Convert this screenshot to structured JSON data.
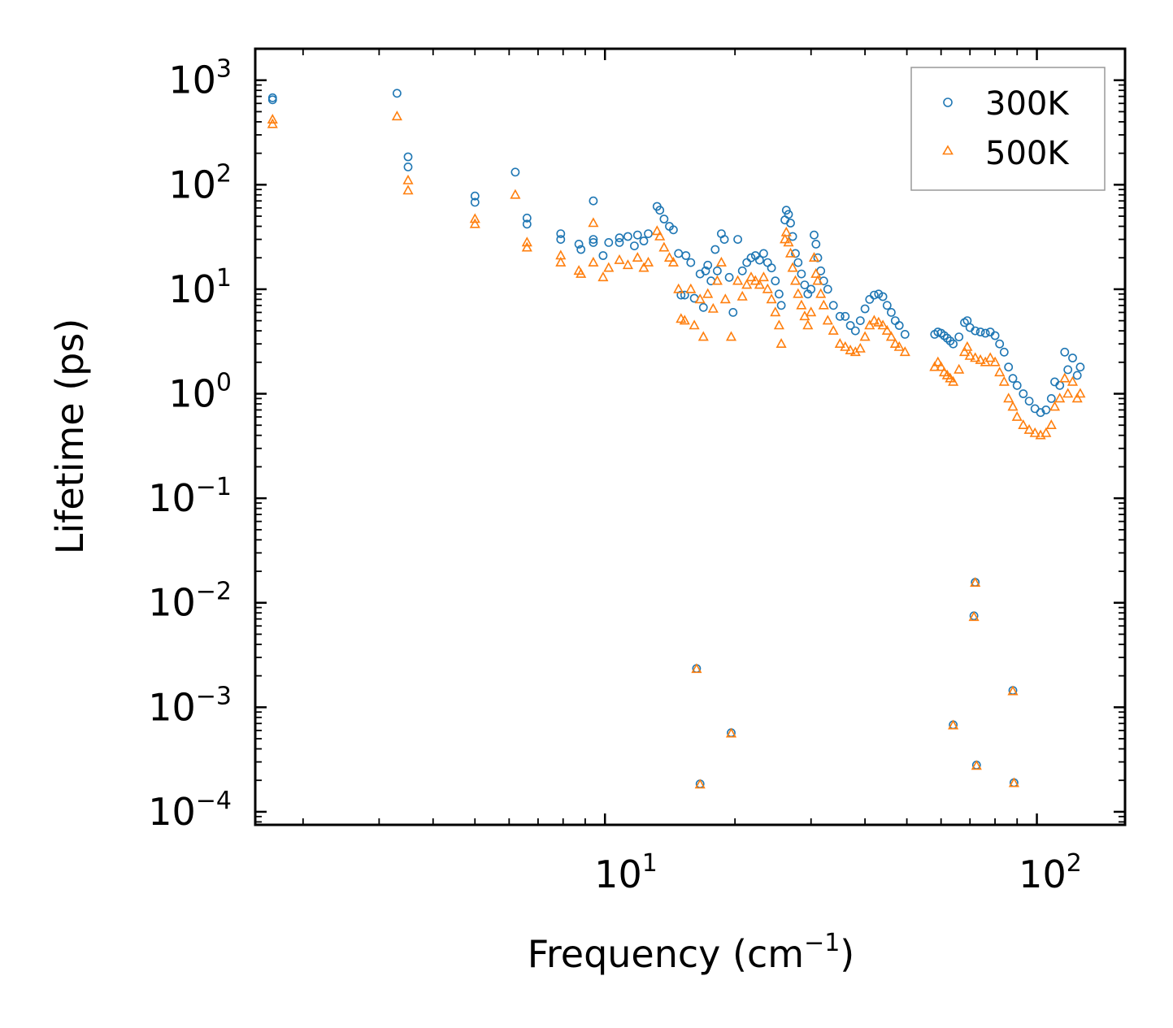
{
  "chart_data": {
    "type": "scatter",
    "xscale": "log",
    "yscale": "log",
    "xlim": [
      1.55,
      160
    ],
    "ylim": [
      7.5e-05,
      2000
    ],
    "xlabel": "Frequency (cm",
    "xlabel_exp": "−1",
    "xlabel_end": ")",
    "ylabel": "Lifetime (ps)",
    "x_ticks": [
      {
        "base": "10",
        "exp": "1",
        "value": 10
      },
      {
        "base": "10",
        "exp": "2",
        "value": 100
      }
    ],
    "y_ticks": [
      {
        "base": "10",
        "exp": "3",
        "value": 1000
      },
      {
        "base": "10",
        "exp": "2",
        "value": 100
      },
      {
        "base": "10",
        "exp": "1",
        "value": 10
      },
      {
        "base": "10",
        "exp": "0",
        "value": 1
      },
      {
        "base": "10",
        "exp": "−1",
        "value": 0.1
      },
      {
        "base": "10",
        "exp": "−2",
        "value": 0.01
      },
      {
        "base": "10",
        "exp": "−3",
        "value": 0.001
      },
      {
        "base": "10",
        "exp": "−4",
        "value": 0.0001
      }
    ],
    "legend_position": "top-right",
    "series": [
      {
        "name": "300K",
        "marker": "circle",
        "color": "#1f77b4",
        "points": [
          [
            1.7,
            680
          ],
          [
            1.7,
            650
          ],
          [
            3.3,
            750
          ],
          [
            3.5,
            185
          ],
          [
            3.5,
            148
          ],
          [
            5.0,
            78
          ],
          [
            5.0,
            68
          ],
          [
            6.2,
            132
          ],
          [
            6.6,
            48
          ],
          [
            6.6,
            42
          ],
          [
            7.9,
            34
          ],
          [
            7.9,
            30
          ],
          [
            8.7,
            27
          ],
          [
            8.8,
            24
          ],
          [
            9.4,
            70
          ],
          [
            9.4,
            30
          ],
          [
            9.4,
            28
          ],
          [
            9.9,
            21
          ],
          [
            10.2,
            28
          ],
          [
            10.8,
            31
          ],
          [
            10.8,
            28
          ],
          [
            11.3,
            32
          ],
          [
            11.7,
            26
          ],
          [
            11.9,
            33
          ],
          [
            12.3,
            29
          ],
          [
            12.6,
            34
          ],
          [
            13.2,
            62
          ],
          [
            13.4,
            57
          ],
          [
            13.7,
            47
          ],
          [
            14.1,
            40
          ],
          [
            14.4,
            37
          ],
          [
            14.8,
            22
          ],
          [
            15.0,
            8.8
          ],
          [
            15.3,
            8.8
          ],
          [
            15.4,
            21
          ],
          [
            15.8,
            18
          ],
          [
            16.1,
            8.2
          ],
          [
            16.6,
            14
          ],
          [
            16.9,
            6.7
          ],
          [
            17.1,
            15
          ],
          [
            17.3,
            17
          ],
          [
            17.6,
            12
          ],
          [
            18.0,
            24
          ],
          [
            18.2,
            15
          ],
          [
            18.6,
            34
          ],
          [
            18.9,
            30
          ],
          [
            19.4,
            13
          ],
          [
            19.8,
            6.0
          ],
          [
            20.3,
            30
          ],
          [
            20.8,
            15
          ],
          [
            21.3,
            18
          ],
          [
            21.8,
            20
          ],
          [
            22.3,
            21
          ],
          [
            22.8,
            19
          ],
          [
            23.3,
            22
          ],
          [
            23.8,
            18
          ],
          [
            24.3,
            16
          ],
          [
            24.8,
            12
          ],
          [
            25.3,
            9.0
          ],
          [
            25.6,
            7.0
          ],
          [
            26.1,
            46
          ],
          [
            26.3,
            57
          ],
          [
            26.6,
            52
          ],
          [
            26.9,
            43
          ],
          [
            27.2,
            32
          ],
          [
            27.6,
            22
          ],
          [
            28.0,
            18
          ],
          [
            28.5,
            14
          ],
          [
            29.0,
            11
          ],
          [
            29.5,
            9.0
          ],
          [
            30.0,
            10
          ],
          [
            30.5,
            33
          ],
          [
            30.8,
            27
          ],
          [
            31.1,
            20
          ],
          [
            31.6,
            15
          ],
          [
            32.1,
            12
          ],
          [
            32.8,
            10
          ],
          [
            33.8,
            7.0
          ],
          [
            35.0,
            5.5
          ],
          [
            36.0,
            5.5
          ],
          [
            37.0,
            4.5
          ],
          [
            38.0,
            4.0
          ],
          [
            39.0,
            5.0
          ],
          [
            40.0,
            6.5
          ],
          [
            41.0,
            8.0
          ],
          [
            42.0,
            8.8
          ],
          [
            43.0,
            9.0
          ],
          [
            44.0,
            8.5
          ],
          [
            45.0,
            7.0
          ],
          [
            46.0,
            6.0
          ],
          [
            47.0,
            5.0
          ],
          [
            48.0,
            4.5
          ],
          [
            49.5,
            3.7
          ],
          [
            58.0,
            3.7
          ],
          [
            59.0,
            3.9
          ],
          [
            60.0,
            3.8
          ],
          [
            61.0,
            3.6
          ],
          [
            62.0,
            3.4
          ],
          [
            63.0,
            3.2
          ],
          [
            64.0,
            3.0
          ],
          [
            66.0,
            3.5
          ],
          [
            68.0,
            4.8
          ],
          [
            69.0,
            5.0
          ],
          [
            70.0,
            4.3
          ],
          [
            72.0,
            4.0
          ],
          [
            74.0,
            3.9
          ],
          [
            76.0,
            3.8
          ],
          [
            78.0,
            3.9
          ],
          [
            80.0,
            3.6
          ],
          [
            82.0,
            3.0
          ],
          [
            84.0,
            2.5
          ],
          [
            86.0,
            1.8
          ],
          [
            88.0,
            1.4
          ],
          [
            90.0,
            1.2
          ],
          [
            93.0,
            1.0
          ],
          [
            96.0,
            0.85
          ],
          [
            99.0,
            0.72
          ],
          [
            102.0,
            0.66
          ],
          [
            105.0,
            0.7
          ],
          [
            108.0,
            0.9
          ],
          [
            110.0,
            1.3
          ],
          [
            113.0,
            1.2
          ],
          [
            116.0,
            2.5
          ],
          [
            118.0,
            1.7
          ],
          [
            121.0,
            2.2
          ],
          [
            124.0,
            1.5
          ],
          [
            126.0,
            1.8
          ],
          [
            16.3,
            0.00235
          ],
          [
            19.6,
            0.00057
          ],
          [
            16.6,
            0.000185
          ],
          [
            72.0,
            0.0157
          ],
          [
            71.5,
            0.0075
          ],
          [
            64.0,
            0.00068
          ],
          [
            72.5,
            0.00028
          ],
          [
            88.0,
            0.00145
          ],
          [
            88.5,
            0.00019
          ]
        ]
      },
      {
        "name": "500K",
        "marker": "triangle",
        "color": "#ff7f0e",
        "points": [
          [
            1.7,
            420
          ],
          [
            1.7,
            380
          ],
          [
            3.3,
            450
          ],
          [
            3.5,
            110
          ],
          [
            3.5,
            88
          ],
          [
            5.0,
            47
          ],
          [
            5.0,
            42
          ],
          [
            6.2,
            80
          ],
          [
            6.6,
            28
          ],
          [
            6.6,
            25
          ],
          [
            7.9,
            21
          ],
          [
            7.9,
            18
          ],
          [
            8.7,
            15
          ],
          [
            8.8,
            14
          ],
          [
            9.4,
            43
          ],
          [
            9.4,
            18
          ],
          [
            9.9,
            13
          ],
          [
            10.2,
            16
          ],
          [
            10.8,
            19
          ],
          [
            11.3,
            17
          ],
          [
            11.9,
            20
          ],
          [
            12.3,
            16
          ],
          [
            12.6,
            18
          ],
          [
            13.2,
            36
          ],
          [
            13.4,
            32
          ],
          [
            13.7,
            25
          ],
          [
            14.1,
            20
          ],
          [
            14.4,
            18
          ],
          [
            14.8,
            10
          ],
          [
            15.0,
            5.2
          ],
          [
            15.3,
            5.0
          ],
          [
            15.8,
            10
          ],
          [
            16.1,
            4.5
          ],
          [
            16.6,
            8.0
          ],
          [
            16.9,
            3.5
          ],
          [
            17.3,
            9.0
          ],
          [
            17.8,
            6.5
          ],
          [
            18.2,
            12
          ],
          [
            18.6,
            18
          ],
          [
            19.0,
            8.0
          ],
          [
            19.6,
            3.5
          ],
          [
            20.3,
            12
          ],
          [
            20.8,
            8.5
          ],
          [
            21.3,
            11
          ],
          [
            21.8,
            13
          ],
          [
            22.3,
            12
          ],
          [
            22.8,
            11
          ],
          [
            23.3,
            13
          ],
          [
            23.8,
            10
          ],
          [
            24.3,
            8.0
          ],
          [
            24.8,
            6.0
          ],
          [
            25.3,
            4.5
          ],
          [
            25.6,
            3.0
          ],
          [
            26.1,
            30
          ],
          [
            26.3,
            35
          ],
          [
            26.6,
            28
          ],
          [
            26.9,
            22
          ],
          [
            27.2,
            16
          ],
          [
            27.6,
            12
          ],
          [
            28.0,
            9.0
          ],
          [
            28.5,
            7.0
          ],
          [
            29.0,
            5.5
          ],
          [
            29.5,
            4.5
          ],
          [
            30.0,
            6.0
          ],
          [
            30.5,
            20
          ],
          [
            30.8,
            14
          ],
          [
            31.1,
            12
          ],
          [
            31.6,
            9.0
          ],
          [
            32.1,
            7.0
          ],
          [
            32.8,
            5.0
          ],
          [
            33.8,
            4.0
          ],
          [
            35.0,
            3.0
          ],
          [
            36.0,
            2.8
          ],
          [
            37.0,
            2.6
          ],
          [
            38.0,
            2.5
          ],
          [
            39.0,
            2.7
          ],
          [
            40.0,
            3.5
          ],
          [
            41.0,
            4.5
          ],
          [
            42.0,
            5.0
          ],
          [
            43.0,
            4.8
          ],
          [
            44.0,
            4.5
          ],
          [
            45.0,
            4.0
          ],
          [
            46.0,
            3.5
          ],
          [
            47.0,
            3.0
          ],
          [
            48.0,
            2.8
          ],
          [
            49.5,
            2.5
          ],
          [
            58.0,
            1.8
          ],
          [
            59.0,
            2.0
          ],
          [
            60.0,
            1.8
          ],
          [
            61.0,
            1.6
          ],
          [
            62.0,
            1.5
          ],
          [
            63.0,
            1.4
          ],
          [
            64.0,
            1.3
          ],
          [
            66.0,
            1.7
          ],
          [
            68.0,
            2.5
          ],
          [
            69.0,
            2.8
          ],
          [
            70.0,
            2.3
          ],
          [
            72.0,
            2.2
          ],
          [
            74.0,
            2.1
          ],
          [
            76.0,
            2.0
          ],
          [
            78.0,
            2.2
          ],
          [
            80.0,
            2.0
          ],
          [
            82.0,
            1.6
          ],
          [
            84.0,
            1.3
          ],
          [
            86.0,
            0.9
          ],
          [
            88.0,
            0.75
          ],
          [
            90.0,
            0.6
          ],
          [
            93.0,
            0.5
          ],
          [
            96.0,
            0.45
          ],
          [
            99.0,
            0.42
          ],
          [
            102.0,
            0.4
          ],
          [
            105.0,
            0.42
          ],
          [
            108.0,
            0.5
          ],
          [
            110.0,
            0.75
          ],
          [
            113.0,
            0.9
          ],
          [
            116.0,
            1.4
          ],
          [
            118.0,
            1.0
          ],
          [
            121.0,
            1.3
          ],
          [
            124.0,
            0.9
          ],
          [
            126.0,
            1.0
          ],
          [
            16.3,
            0.00232
          ],
          [
            19.6,
            0.00056
          ],
          [
            16.6,
            0.000182
          ],
          [
            72.0,
            0.0155
          ],
          [
            71.5,
            0.0073
          ],
          [
            64.0,
            0.00067
          ],
          [
            72.5,
            0.000275
          ],
          [
            88.0,
            0.00142
          ],
          [
            88.5,
            0.000188
          ]
        ]
      }
    ]
  }
}
